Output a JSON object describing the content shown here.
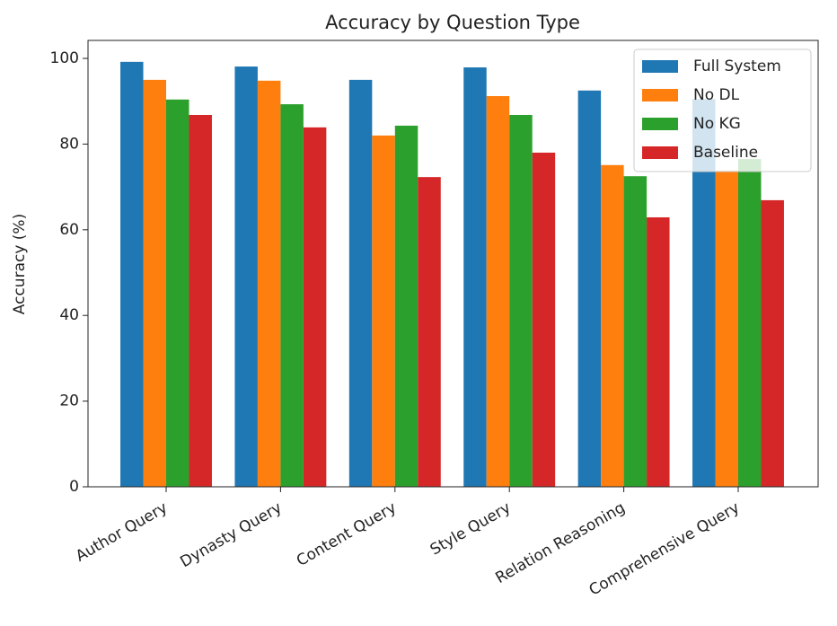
{
  "chart_data": {
    "type": "bar",
    "title": "Accuracy by Question Type",
    "y_label": "Accuracy (%)",
    "categories": [
      "Author Query",
      "Dynasty Query",
      "Content Query",
      "Style Query",
      "Relation Reasoning",
      "Comprehensive Query"
    ],
    "series": [
      {
        "name": "Full System",
        "color": "#1f77b4",
        "values": [
          99.2,
          98.1,
          95.0,
          97.9,
          92.5,
          90.5
        ]
      },
      {
        "name": "No DL",
        "color": "#ff7f0e",
        "values": [
          95.0,
          94.8,
          82.0,
          91.2,
          75.1,
          73.8
        ]
      },
      {
        "name": "No KG",
        "color": "#2ca02c",
        "values": [
          90.4,
          89.3,
          84.3,
          86.8,
          72.5,
          76.5
        ]
      },
      {
        "name": "Baseline",
        "color": "#d62728",
        "values": [
          86.8,
          83.9,
          72.3,
          78.0,
          62.9,
          66.9
        ]
      }
    ],
    "ylim": [
      0,
      104.2
    ],
    "yticks": [
      0,
      20,
      40,
      60,
      80,
      100
    ],
    "legend": "upper right"
  }
}
